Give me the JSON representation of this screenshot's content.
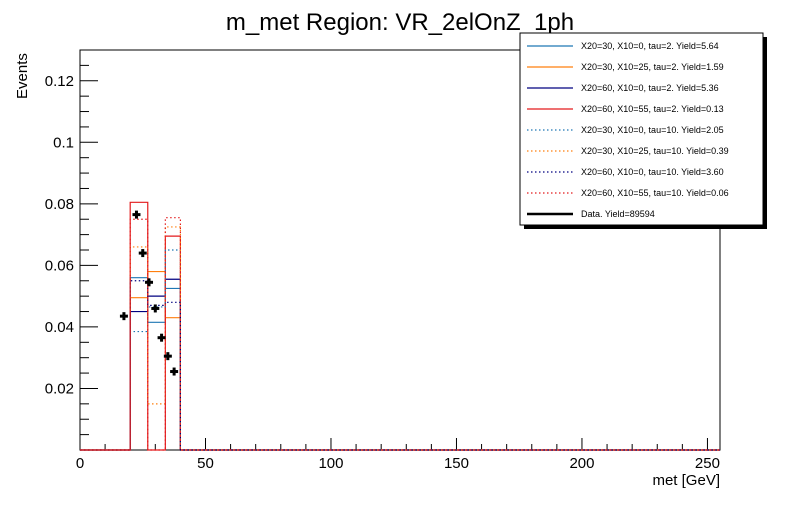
{
  "chart_data": {
    "type": "histogram",
    "title": "m_met Region: VR_2elOnZ_1ph",
    "xlabel": "met [GeV]",
    "ylabel": "Events",
    "xlim": [
      0,
      255
    ],
    "ylim": [
      0,
      0.13
    ],
    "x_ticks": [
      0,
      50,
      100,
      150,
      200,
      250
    ],
    "y_ticks": [
      0.02,
      0.04,
      0.06,
      0.08,
      0.1,
      0.12
    ],
    "x_tick_labels": [
      "0",
      "50",
      "100",
      "150",
      "200",
      "250"
    ],
    "y_tick_labels": [
      "0.02",
      "0.04",
      "0.06",
      "0.08",
      "0.1",
      "0.12"
    ],
    "bin_edges": [
      20,
      27,
      34,
      40
    ],
    "series": [
      {
        "name": "X20=30, X10=0, tau=2. Yield=5.64",
        "color": "#1f77b4",
        "style": "solid",
        "values": [
          0.056,
          0.0415,
          0.0525
        ]
      },
      {
        "name": "X20=30, X10=25, tau=2. Yield=1.59",
        "color": "#ff7f0e",
        "style": "solid",
        "values": [
          0.0495,
          0.058,
          0.043
        ]
      },
      {
        "name": "X20=60, X10=0, tau=2. Yield=5.36",
        "color": "#000080",
        "style": "solid",
        "values": [
          0.045,
          0.05,
          0.0555
        ]
      },
      {
        "name": "X20=60, X10=55, tau=2. Yield=0.13",
        "color": "#e31a1c",
        "style": "solid",
        "values": [
          0.0805,
          0.0,
          0.0695
        ]
      },
      {
        "name": "X20=30, X10=0, tau=10. Yield=2.05",
        "color": "#1f77b4",
        "style": "dotted",
        "values": [
          0.0385,
          0.0465,
          0.065
        ]
      },
      {
        "name": "X20=30, X10=25, tau=10. Yield=0.39",
        "color": "#ff7f0e",
        "style": "dotted",
        "values": [
          0.066,
          0.015,
          0.0725
        ]
      },
      {
        "name": "X20=60, X10=0, tau=10. Yield=3.60",
        "color": "#000080",
        "style": "dotted",
        "values": [
          0.055,
          0.047,
          0.048
        ]
      },
      {
        "name": "X20=60, X10=55, tau=10. Yield=0.06",
        "color": "#e31a1c",
        "style": "dotted",
        "values": [
          0.075,
          0.0,
          0.0755
        ]
      }
    ],
    "data": {
      "name": "Data. Yield=89594",
      "x": [
        17.5,
        22.5,
        25,
        27.5,
        30,
        32.5,
        35,
        37.5
      ],
      "y": [
        0.0435,
        0.0765,
        0.064,
        0.0545,
        0.046,
        0.0365,
        0.0305,
        0.0255
      ]
    },
    "legend_position": "top-right"
  }
}
